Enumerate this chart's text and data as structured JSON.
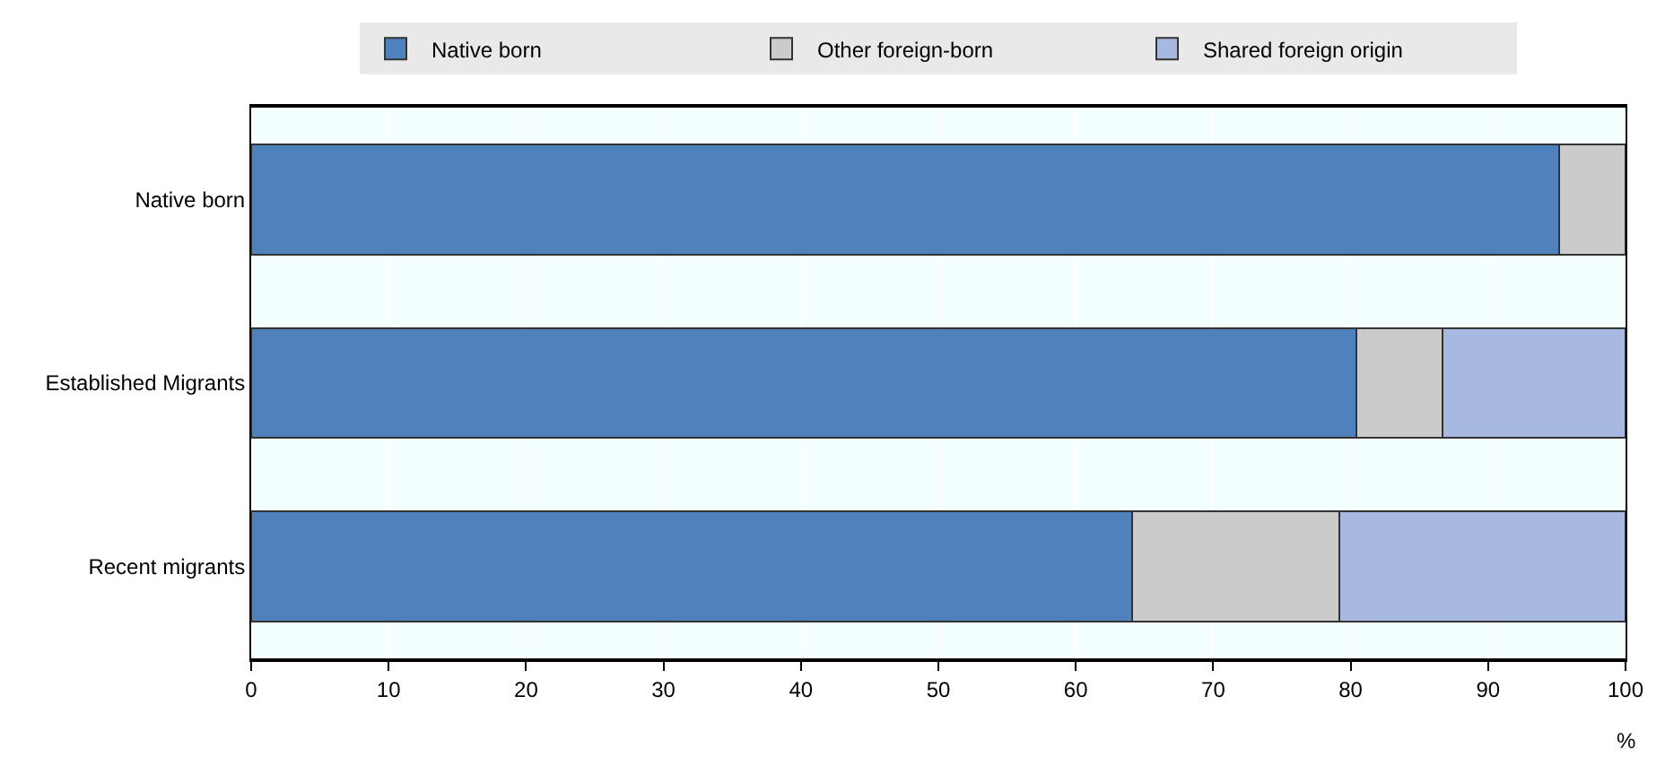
{
  "chart_data": {
    "type": "bar",
    "orientation": "horizontal",
    "stacked": true,
    "categories": [
      "Native born",
      "Established Migrants",
      "Recent migrants"
    ],
    "series": [
      {
        "name": "Native born",
        "color": "#4f81bd",
        "values": [
          95.2,
          80.4,
          64.1
        ]
      },
      {
        "name": "Other foreign-born",
        "color": "#cbcbcb",
        "values": [
          4.8,
          6.3,
          15.1
        ]
      },
      {
        "name": "Shared foreign origin",
        "color": "#a7b8e1",
        "values": [
          null,
          13.3,
          20.8
        ]
      }
    ],
    "xlabel": "%",
    "xlim": [
      0,
      100
    ],
    "xticks": [
      0,
      10,
      20,
      30,
      40,
      50,
      60,
      70,
      80,
      90,
      100
    ],
    "grid": "x",
    "legend": "top"
  }
}
